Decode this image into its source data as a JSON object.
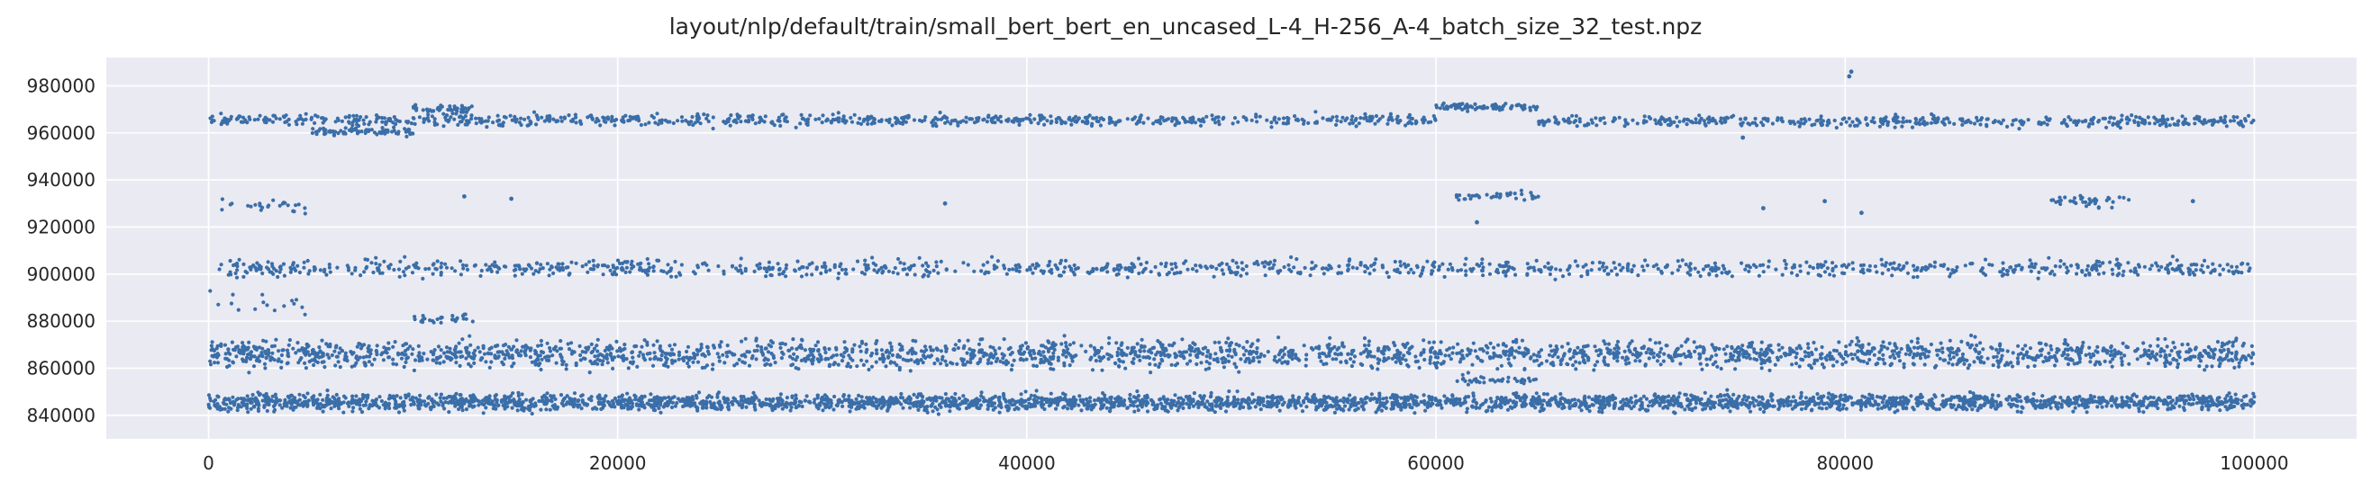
{
  "chart_data": {
    "type": "scatter",
    "title": "layout/nlp/default/train/small_bert_bert_en_uncased_L-4_H-256_A-4_batch_size_32_test.npz",
    "xlabel": "",
    "ylabel": "",
    "xlim": [
      -5000,
      105000
    ],
    "ylim": [
      830000,
      992000
    ],
    "x_ticks": [
      0,
      20000,
      40000,
      60000,
      80000,
      100000
    ],
    "x_tick_labels": [
      "0",
      "20000",
      "40000",
      "60000",
      "80000",
      "100000"
    ],
    "y_ticks": [
      840000,
      860000,
      880000,
      900000,
      920000,
      940000,
      960000,
      980000
    ],
    "y_tick_labels": [
      "840000",
      "860000",
      "880000",
      "900000",
      "920000",
      "940000",
      "960000",
      "980000"
    ],
    "grid": true,
    "background": "#eaeaf2",
    "marker_color": "#3a6ea8",
    "x_max": 100000,
    "bands": [
      {
        "x": [
          0,
          100000
        ],
        "y_center": 845500,
        "y_spread": 3000,
        "density": 1.0
      },
      {
        "x": [
          0,
          100000
        ],
        "y_center": 866000,
        "y_spread": 5000,
        "density": 0.75
      },
      {
        "x": [
          0,
          100000
        ],
        "y_center": 902500,
        "y_spread": 3000,
        "density": 0.35
      },
      {
        "x": [
          0,
          60000
        ],
        "y_center": 965500,
        "y_spread": 2000,
        "density": 0.4
      },
      {
        "x": [
          60000,
          65000
        ],
        "y_center": 971000,
        "y_spread": 1500,
        "density": 0.5
      },
      {
        "x": [
          65000,
          100000
        ],
        "y_center": 965000,
        "y_spread": 2000,
        "density": 0.4
      },
      {
        "x": [
          5000,
          10000
        ],
        "y_center": 960500,
        "y_spread": 1200,
        "density": 0.5
      },
      {
        "x": [
          10000,
          13000
        ],
        "y_center": 970000,
        "y_spread": 1500,
        "density": 0.5
      },
      {
        "x": [
          500,
          5000
        ],
        "y_center": 929000,
        "y_spread": 2500,
        "density": 0.18
      },
      {
        "x": [
          61000,
          65000
        ],
        "y_center": 933000,
        "y_spread": 1500,
        "density": 0.3
      },
      {
        "x": [
          90000,
          94000
        ],
        "y_center": 931000,
        "y_spread": 2000,
        "density": 0.3
      },
      {
        "x": [
          10000,
          13000
        ],
        "y_center": 881000,
        "y_spread": 1500,
        "density": 0.3
      },
      {
        "x": [
          0,
          5000
        ],
        "y_center": 887000,
        "y_spread": 4000,
        "density": 0.1
      },
      {
        "x": [
          61000,
          65000
        ],
        "y_center": 855000,
        "y_spread": 1500,
        "density": 0.3
      }
    ],
    "outliers": [
      {
        "x": 80300,
        "y": 986000
      },
      {
        "x": 80200,
        "y": 984000
      },
      {
        "x": 36000,
        "y": 930000
      },
      {
        "x": 12500,
        "y": 933000
      },
      {
        "x": 14800,
        "y": 932000
      },
      {
        "x": 76000,
        "y": 928000
      },
      {
        "x": 79000,
        "y": 931000
      },
      {
        "x": 97000,
        "y": 931000
      },
      {
        "x": 80800,
        "y": 926000
      },
      {
        "x": 62000,
        "y": 922000
      },
      {
        "x": 75000,
        "y": 958000
      }
    ]
  }
}
